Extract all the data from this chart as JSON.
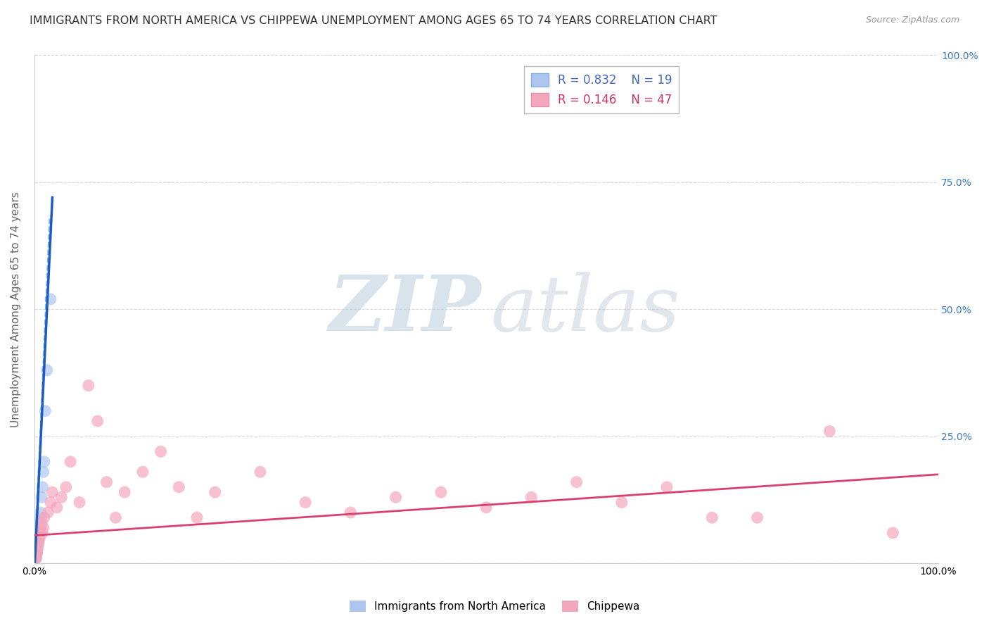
{
  "title": "IMMIGRANTS FROM NORTH AMERICA VS CHIPPEWA UNEMPLOYMENT AMONG AGES 65 TO 74 YEARS CORRELATION CHART",
  "source": "Source: ZipAtlas.com",
  "ylabel": "Unemployment Among Ages 65 to 74 years",
  "xlim": [
    0,
    1.0
  ],
  "ylim": [
    0,
    1.0
  ],
  "blue_R": 0.832,
  "blue_N": 19,
  "pink_R": 0.146,
  "pink_N": 47,
  "blue_scatter_x": [
    0.001,
    0.002,
    0.002,
    0.003,
    0.003,
    0.004,
    0.004,
    0.005,
    0.005,
    0.006,
    0.006,
    0.007,
    0.008,
    0.009,
    0.01,
    0.011,
    0.012,
    0.014,
    0.018
  ],
  "blue_scatter_y": [
    0.01,
    0.01,
    0.02,
    0.02,
    0.03,
    0.04,
    0.05,
    0.05,
    0.06,
    0.08,
    0.09,
    0.1,
    0.13,
    0.15,
    0.18,
    0.2,
    0.3,
    0.38,
    0.52
  ],
  "pink_scatter_x": [
    0.001,
    0.002,
    0.002,
    0.003,
    0.003,
    0.004,
    0.005,
    0.005,
    0.006,
    0.006,
    0.007,
    0.008,
    0.009,
    0.01,
    0.011,
    0.015,
    0.018,
    0.02,
    0.025,
    0.03,
    0.035,
    0.04,
    0.05,
    0.06,
    0.07,
    0.08,
    0.09,
    0.1,
    0.12,
    0.14,
    0.16,
    0.18,
    0.2,
    0.25,
    0.3,
    0.35,
    0.4,
    0.45,
    0.5,
    0.55,
    0.6,
    0.65,
    0.7,
    0.75,
    0.8,
    0.88,
    0.95
  ],
  "pink_scatter_y": [
    0.01,
    0.01,
    0.02,
    0.02,
    0.04,
    0.03,
    0.04,
    0.05,
    0.05,
    0.06,
    0.07,
    0.08,
    0.06,
    0.07,
    0.09,
    0.1,
    0.12,
    0.14,
    0.11,
    0.13,
    0.15,
    0.2,
    0.12,
    0.35,
    0.28,
    0.16,
    0.09,
    0.14,
    0.18,
    0.22,
    0.15,
    0.09,
    0.14,
    0.18,
    0.12,
    0.1,
    0.13,
    0.14,
    0.11,
    0.13,
    0.16,
    0.12,
    0.15,
    0.09,
    0.09,
    0.26,
    0.06
  ],
  "blue_line_x0": 0.0,
  "blue_line_x1": 0.02,
  "blue_line_y0": -0.02,
  "blue_line_y1": 0.72,
  "pink_line_x0": 0.0,
  "pink_line_x1": 1.0,
  "pink_line_y0": 0.055,
  "pink_line_y1": 0.175,
  "blue_color": "#adc6f0",
  "pink_color": "#f4a7bc",
  "blue_line_color": "#1a5ec4",
  "pink_line_color": "#d94070",
  "grid_color": "#d8d8d8",
  "background_color": "#ffffff",
  "title_color": "#333333"
}
